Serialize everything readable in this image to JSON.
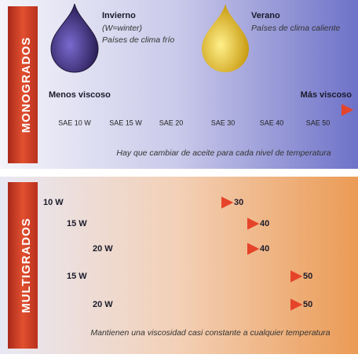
{
  "monogrados": {
    "tab": "MONOGRADOS",
    "winter": {
      "title": "Invierno",
      "note": "(W=winter)",
      "subtitle": "Países de clima frío"
    },
    "summer": {
      "title": "Verano",
      "subtitle": "Países de clima caliente"
    },
    "left_label": "Menos viscoso",
    "right_label": "Más viscoso",
    "grades": [
      "SAE 10 W",
      "SAE 15 W",
      "SAE 20",
      "SAE 30",
      "SAE 40",
      "SAE 50"
    ],
    "caption": "Hay que cambiar de aceite para cada nivel de temperatura"
  },
  "multigrados": {
    "tab": "MULTIGRADOS",
    "rows": [
      {
        "from": "10 W",
        "to": "30"
      },
      {
        "from": "15 W",
        "to": "40"
      },
      {
        "from": "20 W",
        "to": "40"
      },
      {
        "from": "15 W",
        "to": "50"
      },
      {
        "from": "20 W",
        "to": "50"
      }
    ],
    "caption": "Mantienen una viscosidad casi constante a cualquier temperatura"
  }
}
